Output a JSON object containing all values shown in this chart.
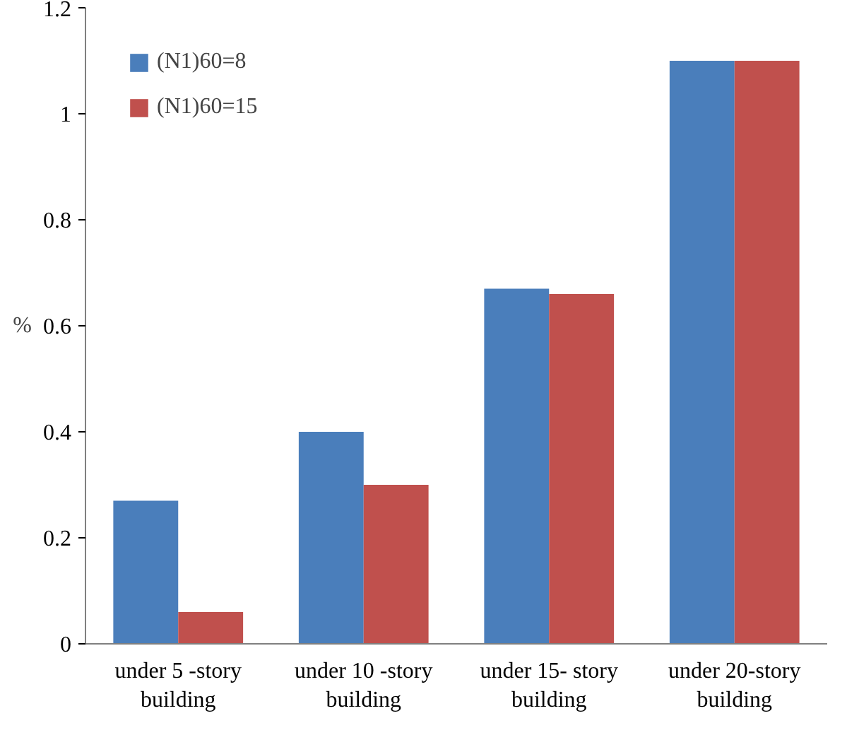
{
  "chart_data": {
    "type": "bar",
    "ylabel": "%",
    "categories": [
      "under 5 -story building",
      "under 10 -story building",
      "under 15- story building",
      "under 20-story building"
    ],
    "series": [
      {
        "name": "(N1)60=8",
        "color": "#4a7ebb",
        "values": [
          0.27,
          0.4,
          0.67,
          1.1
        ]
      },
      {
        "name": "(N1)60=15",
        "color": "#c0504d",
        "values": [
          0.06,
          0.3,
          0.66,
          1.1
        ]
      }
    ],
    "ylim": [
      0,
      1.2
    ],
    "yticks": [
      0,
      {
        "value": 0.2,
        "label": "0.2"
      },
      {
        "value": 0.4,
        "label": "0.4"
      },
      {
        "value": 0.6,
        "label": "0.6"
      },
      {
        "value": 0.8,
        "label": "0.8"
      },
      1,
      {
        "value": 1.2,
        "label": "1.2"
      }
    ],
    "grid": false,
    "legend": "top left"
  }
}
